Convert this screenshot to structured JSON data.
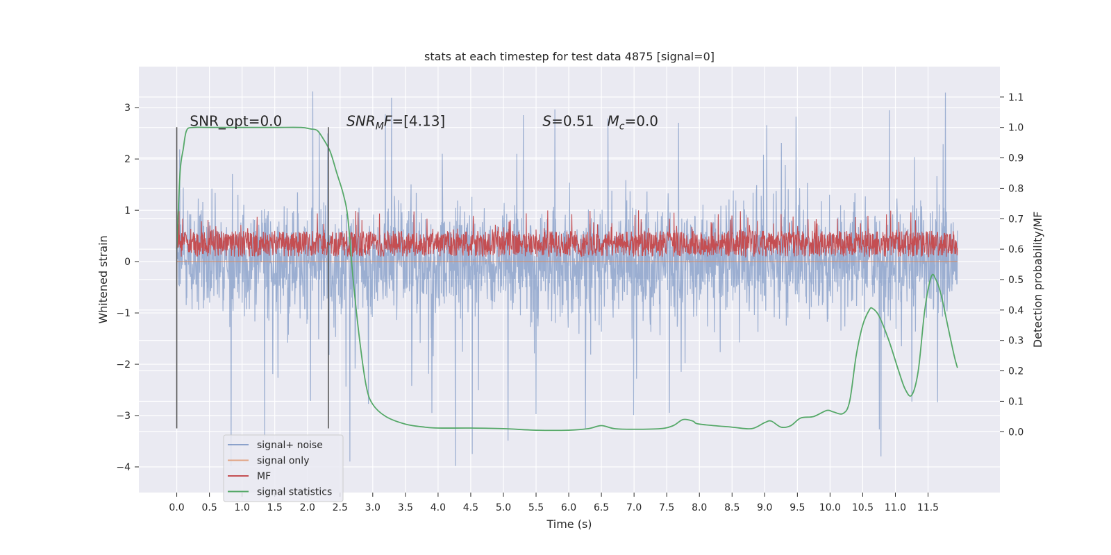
{
  "chart_data": {
    "type": "line",
    "title": "stats at each timestep for test data 4875 [signal=0]",
    "xlabel": "Time (s)",
    "ylabel_left": "Whitened strain",
    "ylabel_right": "Detection probability/MF",
    "xlim": [
      -0.58,
      12.6
    ],
    "ylim_left": [
      -4.5,
      3.8
    ],
    "ylim_right": [
      -0.2,
      1.2
    ],
    "xticks": [
      0.0,
      0.5,
      1.0,
      1.5,
      2.0,
      2.5,
      3.0,
      3.5,
      4.0,
      4.5,
      5.0,
      5.5,
      6.0,
      6.5,
      7.0,
      7.5,
      8.0,
      8.5,
      9.0,
      9.5,
      10.0,
      10.5,
      11.0,
      11.5
    ],
    "xtick_labels": [
      "0.0",
      "0.5",
      "1.0",
      "1.5",
      "2.0",
      "2.5",
      "3.0",
      "3.5",
      "4.0",
      "4.5",
      "5.0",
      "5.5",
      "6.0",
      "6.5",
      "7.0",
      "7.5",
      "8.0",
      "8.5",
      "9.0",
      "9.5",
      "10.0",
      "10.5",
      "11.0",
      "11.5"
    ],
    "yticks_left": [
      3,
      2,
      1,
      0,
      -1,
      -2,
      -3,
      -4
    ],
    "ytick_labels_left": [
      "3",
      "2",
      "1",
      "0",
      "−1",
      "−2",
      "−3",
      "−4"
    ],
    "yticks_right": [
      1.1,
      1.0,
      0.9,
      0.8,
      0.7,
      0.6,
      0.5,
      0.4,
      0.3,
      0.2,
      0.1,
      0.0
    ],
    "ytick_labels_right": [
      "1.1",
      "1.0",
      "0.9",
      "0.8",
      "0.7",
      "0.6",
      "0.5",
      "0.4",
      "0.3",
      "0.2",
      "0.1",
      "0.0"
    ],
    "grid": true,
    "background": "#eaeaf2",
    "annotations": [
      {
        "text": "SNR_opt=0.0",
        "x": 0.2,
        "y_right": 1.0
      },
      {
        "text": "SNR_MF=[4.13]",
        "x": 2.6,
        "y_right": 1.0
      },
      {
        "text": "S=0.51   M_c=0.0",
        "x": 5.6,
        "y_right": 1.0
      }
    ],
    "vlines": [
      {
        "x": 0.0,
        "ymin_left": -3.25,
        "ymax_left": 2.62,
        "color": "#555555"
      },
      {
        "x": 2.32,
        "ymin_left": -3.25,
        "ymax_left": 2.62,
        "color": "#555555"
      }
    ],
    "series": [
      {
        "name": "signal+ noise",
        "axis": "left",
        "color": "#4c72b0",
        "kind": "noise",
        "x_range": [
          0.0,
          11.95
        ],
        "envelope_left": [
          -2.0,
          2.0
        ],
        "spike_range_left": [
          -4.1,
          3.4
        ]
      },
      {
        "name": "signal only",
        "axis": "left",
        "color": "#dd8452",
        "x": [
          0.0,
          11.95
        ],
        "y": [
          0.0,
          0.0
        ]
      },
      {
        "name": "MF",
        "axis": "right",
        "color": "#c44e52",
        "kind": "noise",
        "x_range": [
          0.0,
          11.95
        ],
        "band_right": [
          0.575,
          0.66
        ],
        "spike_max_right": 0.73
      },
      {
        "name": "signal statistics",
        "axis": "right",
        "color": "#55a868",
        "x": [
          0.0,
          0.05,
          0.1,
          0.15,
          0.25,
          0.5,
          1.0,
          1.5,
          1.9,
          2.05,
          2.15,
          2.25,
          2.35,
          2.45,
          2.55,
          2.62,
          2.7,
          2.8,
          2.9,
          3.0,
          3.2,
          3.5,
          3.8,
          4.0,
          4.5,
          5.0,
          5.5,
          6.0,
          6.3,
          6.5,
          6.7,
          7.0,
          7.4,
          7.6,
          7.75,
          7.9,
          8.0,
          8.5,
          8.8,
          9.0,
          9.1,
          9.25,
          9.4,
          9.55,
          9.75,
          9.95,
          10.05,
          10.2,
          10.3,
          10.4,
          10.5,
          10.6,
          10.65,
          10.75,
          10.9,
          11.05,
          11.15,
          11.25,
          11.35,
          11.45,
          11.55,
          11.62,
          11.7,
          11.8,
          11.9,
          11.95
        ],
        "y": [
          0.6,
          0.85,
          0.93,
          0.99,
          1.0,
          1.0,
          1.0,
          1.0,
          1.0,
          0.995,
          0.99,
          0.96,
          0.92,
          0.85,
          0.78,
          0.7,
          0.5,
          0.3,
          0.15,
          0.09,
          0.05,
          0.025,
          0.015,
          0.012,
          0.012,
          0.01,
          0.005,
          0.005,
          0.01,
          0.02,
          0.01,
          0.008,
          0.01,
          0.02,
          0.04,
          0.035,
          0.025,
          0.015,
          0.01,
          0.03,
          0.035,
          0.015,
          0.02,
          0.045,
          0.05,
          0.07,
          0.065,
          0.06,
          0.1,
          0.25,
          0.35,
          0.4,
          0.405,
          0.38,
          0.3,
          0.2,
          0.14,
          0.12,
          0.2,
          0.4,
          0.51,
          0.5,
          0.45,
          0.35,
          0.25,
          0.21
        ]
      }
    ],
    "legend": {
      "position": "lower-left",
      "entries": [
        "signal+ noise",
        "signal only",
        "MF",
        "signal statistics"
      ]
    }
  }
}
